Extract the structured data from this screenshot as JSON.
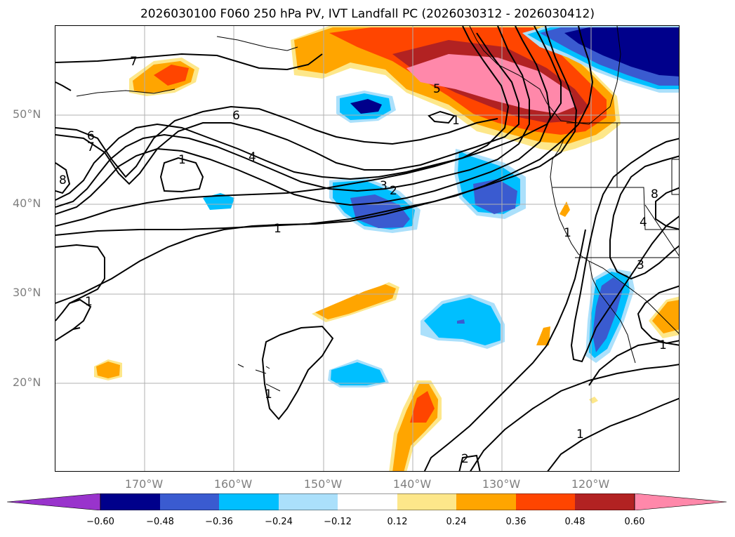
{
  "title": "2026030100 F060 250 hPa PV, IVT Landfall PC (2026030312 - 2026030412)",
  "lat_labels": [
    "50°N",
    "40°N",
    "30°N",
    "20°N"
  ],
  "lon_labels": [
    "170°W",
    "160°W",
    "150°W",
    "140°W",
    "130°W",
    "120°W"
  ],
  "colorbar": {
    "ticks": [
      "−0.60",
      "−0.48",
      "−0.36",
      "−0.24",
      "−0.12",
      "0.12",
      "0.24",
      "0.36",
      "0.48",
      "0.60"
    ],
    "colors": [
      "#9933cc",
      "#00008b",
      "#3a5bd0",
      "#00bfff",
      "#abe0fb",
      "#ffffff",
      "#fde78a",
      "#ffa500",
      "#ff4500",
      "#b22222",
      "#ff88aa"
    ]
  },
  "contour_labels": [
    "7",
    "6",
    "6",
    "7",
    "8",
    "1",
    "4",
    "3",
    "2",
    "1",
    "5",
    "1",
    "1",
    "1",
    "1",
    "1",
    "8",
    "4",
    "3",
    "1",
    "2"
  ]
}
